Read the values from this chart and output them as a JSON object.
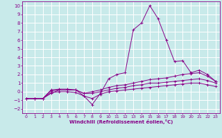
{
  "xlabel": "Windchill (Refroidissement éolien,°C)",
  "xlim": [
    -0.5,
    23.5
  ],
  "ylim": [
    -2.5,
    10.5
  ],
  "xticks": [
    0,
    1,
    2,
    3,
    4,
    5,
    6,
    7,
    8,
    9,
    10,
    11,
    12,
    13,
    14,
    15,
    16,
    17,
    18,
    19,
    20,
    21,
    22,
    23
  ],
  "yticks": [
    -2,
    -1,
    0,
    1,
    2,
    3,
    4,
    5,
    6,
    7,
    8,
    9,
    10
  ],
  "bg_color": "#c8eaea",
  "line_color": "#880088",
  "grid_color": "#ffffff",
  "series": [
    {
      "x": [
        0,
        1,
        2,
        3,
        4,
        5,
        6,
        7,
        8,
        9,
        10,
        11,
        12,
        13,
        14,
        15,
        16,
        17,
        18,
        19,
        20,
        21,
        22,
        23
      ],
      "y": [
        -0.8,
        -0.8,
        -0.8,
        -0.2,
        0.2,
        0.2,
        0.2,
        -0.5,
        -1.5,
        -0.2,
        1.5,
        2.0,
        2.2,
        7.2,
        8.0,
        10.0,
        8.5,
        6.0,
        3.5,
        3.6,
        2.2,
        2.5,
        2.0,
        1.2
      ]
    },
    {
      "x": [
        0,
        1,
        2,
        3,
        4,
        5,
        6,
        7,
        8,
        9,
        10,
        11,
        12,
        13,
        14,
        15,
        16,
        17,
        18,
        19,
        20,
        21,
        22,
        23
      ],
      "y": [
        -0.8,
        -0.8,
        -0.8,
        0.2,
        0.3,
        0.3,
        0.2,
        -0.2,
        0.0,
        0.2,
        0.5,
        0.7,
        0.8,
        1.0,
        1.2,
        1.4,
        1.5,
        1.6,
        1.8,
        2.0,
        2.1,
        2.2,
        1.8,
        1.2
      ]
    },
    {
      "x": [
        0,
        1,
        2,
        3,
        4,
        5,
        6,
        7,
        8,
        9,
        10,
        11,
        12,
        13,
        14,
        15,
        16,
        17,
        18,
        19,
        20,
        21,
        22,
        23
      ],
      "y": [
        -0.8,
        -0.8,
        -0.8,
        0.1,
        0.2,
        0.2,
        0.2,
        -0.2,
        -0.2,
        0.0,
        0.2,
        0.4,
        0.5,
        0.7,
        0.8,
        1.0,
        1.0,
        1.1,
        1.2,
        1.3,
        1.4,
        1.5,
        1.3,
        1.0
      ]
    },
    {
      "x": [
        0,
        1,
        2,
        3,
        4,
        5,
        6,
        7,
        8,
        9,
        10,
        11,
        12,
        13,
        14,
        15,
        16,
        17,
        18,
        19,
        20,
        21,
        22,
        23
      ],
      "y": [
        -0.8,
        -0.8,
        -0.8,
        -0.1,
        0.0,
        0.0,
        -0.1,
        -0.5,
        -0.8,
        -0.3,
        0.0,
        0.1,
        0.2,
        0.3,
        0.4,
        0.5,
        0.6,
        0.7,
        0.8,
        0.9,
        1.0,
        1.0,
        0.8,
        0.6
      ]
    }
  ]
}
